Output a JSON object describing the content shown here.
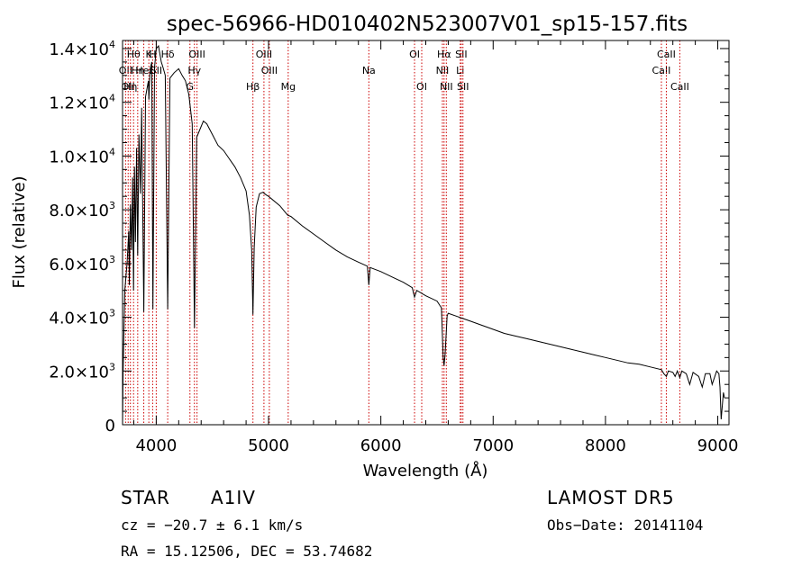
{
  "chart_data": {
    "type": "line",
    "title": "spec-56966-HD010402N523007V01_sp15-157.fits",
    "xlabel": "Wavelength (Å)",
    "ylabel": "Flux (relative)",
    "xlim": [
      3700,
      9100
    ],
    "ylim": [
      0,
      14300
    ],
    "x_ticks": [
      4000,
      5000,
      6000,
      7000,
      8000,
      9000
    ],
    "y_ticks": [
      {
        "value": 0,
        "base": "0",
        "exp": ""
      },
      {
        "value": 2000,
        "base": "2.0×10",
        "exp": "3"
      },
      {
        "value": 4000,
        "base": "4.0×10",
        "exp": "3"
      },
      {
        "value": 6000,
        "base": "6.0×10",
        "exp": "3"
      },
      {
        "value": 8000,
        "base": "8.0×10",
        "exp": "3"
      },
      {
        "value": 10000,
        "base": "1.0×10",
        "exp": "4"
      },
      {
        "value": 12000,
        "base": "1.2×10",
        "exp": "4"
      },
      {
        "value": 14000,
        "base": "1.4×10",
        "exp": "4"
      }
    ],
    "grid": false,
    "line_color": "#000000",
    "marker_color": "#cc0000",
    "spectrum": {
      "name": "",
      "points": [
        [
          3700,
          0
        ],
        [
          3705,
          2000
        ],
        [
          3720,
          5000
        ],
        [
          3740,
          6000
        ],
        [
          3755,
          7200
        ],
        [
          3760,
          5200
        ],
        [
          3770,
          8200
        ],
        [
          3780,
          6500
        ],
        [
          3790,
          9200
        ],
        [
          3798,
          5000
        ],
        [
          3806,
          9600
        ],
        [
          3815,
          6800
        ],
        [
          3825,
          10300
        ],
        [
          3835,
          6300
        ],
        [
          3846,
          10800
        ],
        [
          3860,
          8600
        ],
        [
          3870,
          11800
        ],
        [
          3889,
          4200
        ],
        [
          3905,
          12200
        ],
        [
          3930,
          12800
        ],
        [
          3934,
          12100
        ],
        [
          3945,
          13200
        ],
        [
          3960,
          13500
        ],
        [
          3970,
          4300
        ],
        [
          3985,
          13300
        ],
        [
          4000,
          14000
        ],
        [
          4020,
          14100
        ],
        [
          4045,
          13500
        ],
        [
          4060,
          13300
        ],
        [
          4080,
          13000
        ],
        [
          4102,
          4300
        ],
        [
          4122,
          12900
        ],
        [
          4160,
          13100
        ],
        [
          4200,
          13250
        ],
        [
          4230,
          13000
        ],
        [
          4260,
          12800
        ],
        [
          4290,
          12300
        ],
        [
          4320,
          11200
        ],
        [
          4340,
          3600
        ],
        [
          4360,
          10700
        ],
        [
          4390,
          11000
        ],
        [
          4420,
          11300
        ],
        [
          4450,
          11200
        ],
        [
          4500,
          10800
        ],
        [
          4550,
          10400
        ],
        [
          4600,
          10200
        ],
        [
          4650,
          9900
        ],
        [
          4700,
          9600
        ],
        [
          4750,
          9200
        ],
        [
          4800,
          8700
        ],
        [
          4830,
          7800
        ],
        [
          4850,
          6500
        ],
        [
          4861,
          4100
        ],
        [
          4872,
          6600
        ],
        [
          4890,
          8100
        ],
        [
          4920,
          8600
        ],
        [
          4950,
          8650
        ],
        [
          4980,
          8550
        ],
        [
          5000,
          8500
        ],
        [
          5100,
          8150
        ],
        [
          5170,
          7800
        ],
        [
          5200,
          7750
        ],
        [
          5300,
          7400
        ],
        [
          5400,
          7100
        ],
        [
          5500,
          6800
        ],
        [
          5600,
          6500
        ],
        [
          5700,
          6250
        ],
        [
          5800,
          6050
        ],
        [
          5880,
          5900
        ],
        [
          5893,
          5200
        ],
        [
          5905,
          5850
        ],
        [
          6000,
          5700
        ],
        [
          6100,
          5500
        ],
        [
          6200,
          5300
        ],
        [
          6280,
          5100
        ],
        [
          6300,
          4750
        ],
        [
          6320,
          5000
        ],
        [
          6400,
          4800
        ],
        [
          6500,
          4600
        ],
        [
          6540,
          4350
        ],
        [
          6555,
          2500
        ],
        [
          6563,
          2200
        ],
        [
          6572,
          2600
        ],
        [
          6590,
          4050
        ],
        [
          6600,
          4150
        ],
        [
          6700,
          4000
        ],
        [
          6800,
          3850
        ],
        [
          6900,
          3700
        ],
        [
          7000,
          3550
        ],
        [
          7100,
          3400
        ],
        [
          7200,
          3300
        ],
        [
          7300,
          3200
        ],
        [
          7400,
          3100
        ],
        [
          7500,
          3000
        ],
        [
          7600,
          2900
        ],
        [
          7700,
          2800
        ],
        [
          7800,
          2700
        ],
        [
          7900,
          2600
        ],
        [
          8000,
          2500
        ],
        [
          8100,
          2400
        ],
        [
          8200,
          2300
        ],
        [
          8300,
          2250
        ],
        [
          8400,
          2150
        ],
        [
          8498,
          2050
        ],
        [
          8520,
          1900
        ],
        [
          8542,
          1800
        ],
        [
          8560,
          2000
        ],
        [
          8600,
          1950
        ],
        [
          8620,
          1800
        ],
        [
          8640,
          2000
        ],
        [
          8662,
          1750
        ],
        [
          8680,
          2000
        ],
        [
          8720,
          1900
        ],
        [
          8750,
          1500
        ],
        [
          8780,
          1950
        ],
        [
          8830,
          1800
        ],
        [
          8862,
          1400
        ],
        [
          8890,
          1900
        ],
        [
          8930,
          1900
        ],
        [
          8950,
          1500
        ],
        [
          8990,
          2000
        ],
        [
          9010,
          1900
        ],
        [
          9020,
          1400
        ],
        [
          9030,
          200
        ],
        [
          9050,
          1200
        ],
        [
          9060,
          1000
        ]
      ]
    },
    "line_markers": [
      {
        "wavelength": 3727,
        "label": "OII",
        "row": 1
      },
      {
        "wavelength": 3750,
        "label": "OII",
        "row": 2
      },
      {
        "wavelength": 3770,
        "label": "Hη",
        "row": 2
      },
      {
        "wavelength": 3798,
        "label": "Hθ",
        "row": 0
      },
      {
        "wavelength": 3835,
        "label": "Hη",
        "row": 1
      },
      {
        "wavelength": 3889,
        "label": "HeI",
        "row": 1
      },
      {
        "wavelength": 3934,
        "label": "K",
        "row": 0
      },
      {
        "wavelength": 3968,
        "label": "H",
        "row": 0
      },
      {
        "wavelength": 4000,
        "label": "SII",
        "row": 1
      },
      {
        "wavelength": 4102,
        "label": "Hδ",
        "row": 0
      },
      {
        "wavelength": 4300,
        "label": "G",
        "row": 2
      },
      {
        "wavelength": 4340,
        "label": "Hγ",
        "row": 1
      },
      {
        "wavelength": 4363,
        "label": "OIII",
        "row": 0
      },
      {
        "wavelength": 4861,
        "label": "Hβ",
        "row": 2
      },
      {
        "wavelength": 4959,
        "label": "OIII",
        "row": 0
      },
      {
        "wavelength": 5007,
        "label": "OIII",
        "row": 1
      },
      {
        "wavelength": 5175,
        "label": "Mg",
        "row": 2
      },
      {
        "wavelength": 5893,
        "label": "Na",
        "row": 1
      },
      {
        "wavelength": 6300,
        "label": "OI",
        "row": 0
      },
      {
        "wavelength": 6364,
        "label": "OI",
        "row": 2
      },
      {
        "wavelength": 6548,
        "label": "NII",
        "row": 1
      },
      {
        "wavelength": 6563,
        "label": "Hα",
        "row": 0
      },
      {
        "wavelength": 6583,
        "label": "NII",
        "row": 2
      },
      {
        "wavelength": 6707,
        "label": "Li",
        "row": 1
      },
      {
        "wavelength": 6716,
        "label": "SII",
        "row": 0
      },
      {
        "wavelength": 6731,
        "label": "SII",
        "row": 2
      },
      {
        "wavelength": 8498,
        "label": "CaII",
        "row": 1
      },
      {
        "wavelength": 8542,
        "label": "CaII",
        "row": 0
      },
      {
        "wavelength": 8662,
        "label": "CaII",
        "row": 2
      }
    ]
  },
  "info": {
    "class_label": "STAR",
    "subclass": "A1IV",
    "survey": "LAMOST DR5",
    "redshift": "cz = −20.7 ± 6.1 km/s",
    "obs_date": "Obs−Date: 20141104",
    "coords": "RA =  15.12506, DEC =  53.74682"
  }
}
